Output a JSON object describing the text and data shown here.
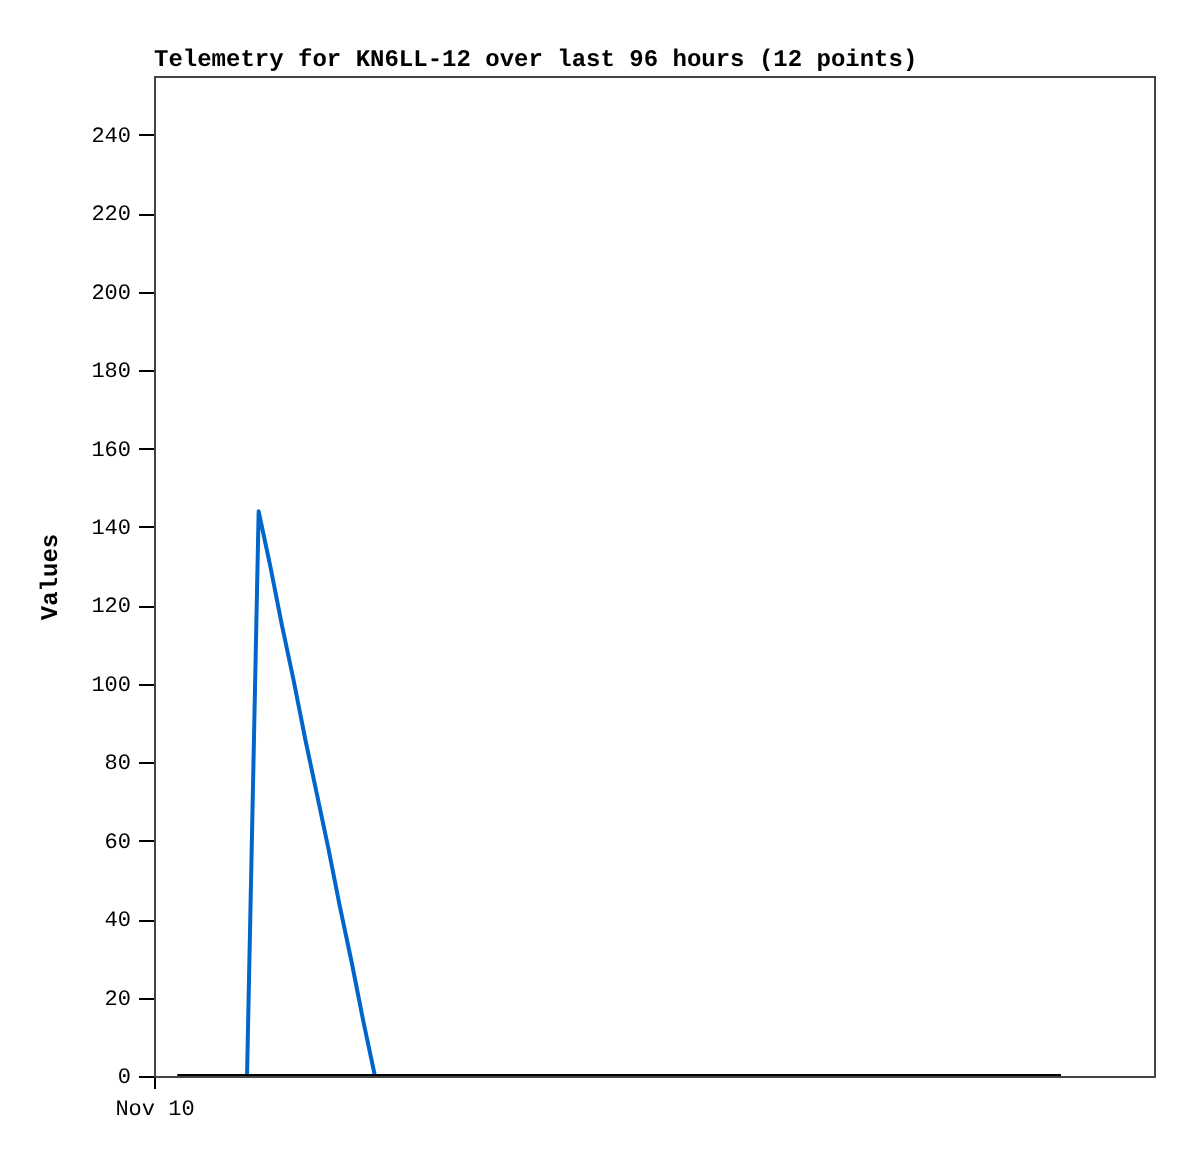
{
  "chart_data": {
    "type": "line",
    "title": "Telemetry for KN6LL-12 over last 96 hours (12 points)",
    "ylabel": "Values",
    "ylim": [
      0,
      255
    ],
    "yticks": [
      0,
      20,
      40,
      60,
      80,
      100,
      120,
      140,
      160,
      180,
      200,
      220,
      240
    ],
    "grid": false,
    "marker": "none",
    "line_style": "solid",
    "categories": [
      "Nov 10",
      null,
      null,
      null,
      null,
      null,
      null,
      null,
      null,
      null,
      null,
      null,
      null,
      null,
      null,
      null,
      null,
      null,
      null,
      null,
      null,
      null,
      null,
      null,
      null,
      null,
      null,
      null,
      null,
      null,
      null,
      null,
      null,
      null,
      null,
      null,
      null,
      null,
      null,
      null,
      null,
      null,
      null,
      null,
      null,
      null,
      null,
      null,
      null,
      null,
      null,
      null,
      null,
      null,
      null,
      null,
      null,
      null,
      null,
      null,
      null,
      null,
      null,
      null,
      null,
      null,
      null,
      null,
      null,
      null,
      null,
      null,
      null,
      null,
      null,
      null,
      null,
      null,
      null,
      null,
      null,
      null,
      null,
      null,
      null,
      null,
      null
    ],
    "series": [
      {
        "color": "#0066cc",
        "values": [
          null,
          null,
          null,
          null,
          null,
          null,
          null,
          null,
          0,
          144,
          130,
          115,
          101,
          86,
          72,
          58,
          43,
          29,
          14,
          0,
          null,
          null,
          null,
          null,
          null,
          null,
          null,
          null,
          null,
          null,
          null,
          null,
          null,
          null,
          null,
          null,
          null,
          null,
          null,
          null,
          null,
          null,
          null,
          null,
          null,
          null,
          null,
          null,
          null,
          null,
          null,
          null,
          null,
          null,
          null,
          null,
          null,
          null,
          null,
          null,
          null,
          null,
          null,
          null,
          null,
          null,
          null,
          null,
          null,
          null,
          null,
          null,
          null,
          null,
          null,
          null,
          null,
          null,
          null,
          null,
          null,
          null,
          null,
          null,
          null,
          null,
          null
        ]
      },
      {
        "color": "#000000",
        "values": [
          null,
          null,
          0,
          0,
          0,
          0,
          0,
          0,
          0,
          0,
          0,
          0,
          0,
          0,
          0,
          0,
          0,
          0,
          0,
          0,
          0,
          0,
          0,
          0,
          0,
          0,
          0,
          0,
          0,
          0,
          0,
          0,
          0,
          0,
          0,
          0,
          0,
          0,
          0,
          0,
          0,
          0,
          0,
          0,
          0,
          0,
          0,
          0,
          0,
          0,
          0,
          0,
          0,
          0,
          0,
          0,
          0,
          0,
          0,
          0,
          0,
          0,
          0,
          0,
          0,
          0,
          0,
          0,
          0,
          0,
          0,
          0,
          0,
          0,
          0,
          0,
          0,
          0,
          0,
          null,
          null,
          null,
          null,
          null,
          null,
          null,
          null
        ]
      }
    ]
  }
}
